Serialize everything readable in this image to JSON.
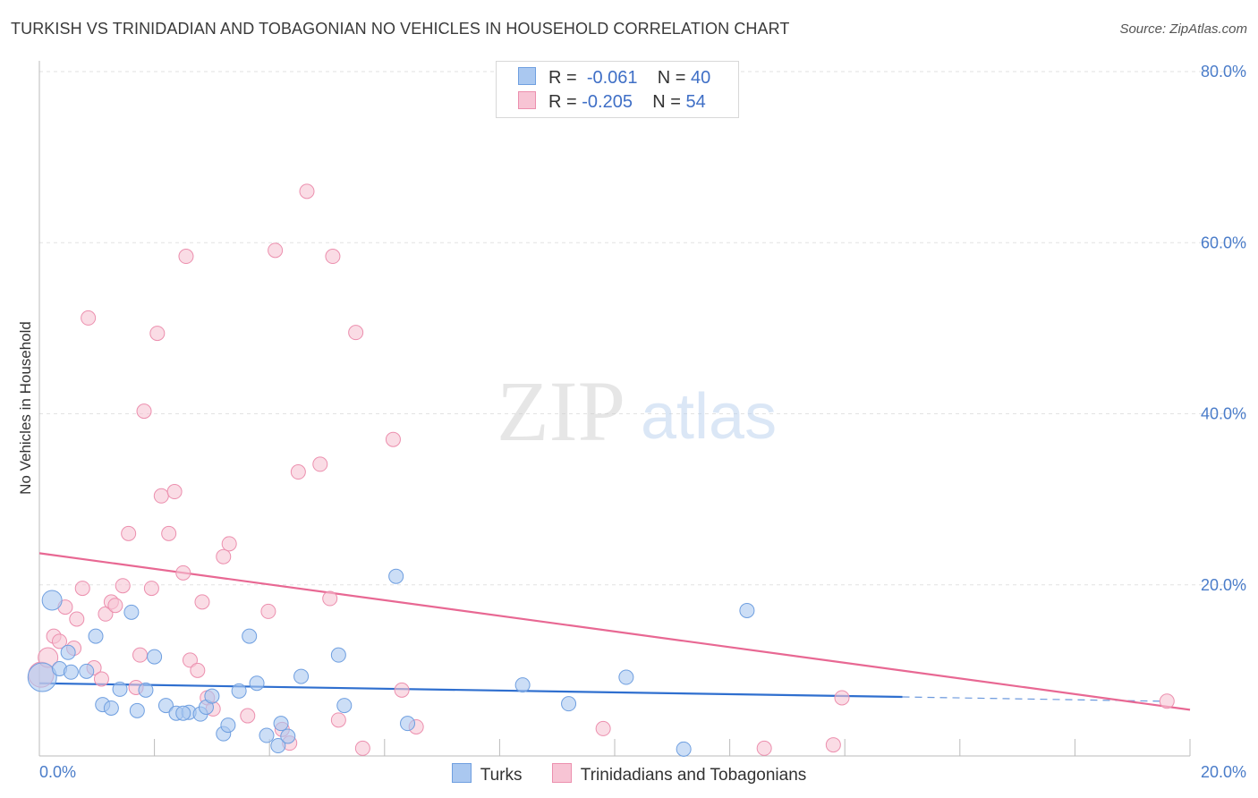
{
  "title": "TURKISH VS TRINIDADIAN AND TOBAGONIAN NO VEHICLES IN HOUSEHOLD CORRELATION CHART",
  "source": "Source: ZipAtlas.com",
  "watermark": {
    "zip": "ZIP",
    "atlas": "atlas"
  },
  "legend": {
    "rows": [
      {
        "r_label": "R =",
        "r_value": "-0.061",
        "n_label": "N =",
        "n_value": "40",
        "color": "#aac8f0",
        "border": "#6f9fe0"
      },
      {
        "r_label": "R =",
        "r_value": "-0.205",
        "n_label": "N =",
        "n_value": "54",
        "color": "#f7c4d4",
        "border": "#ec8fae"
      }
    ]
  },
  "bottom_legend": {
    "turks": "Turks",
    "trin": "Trinidadians and Tobagonians"
  },
  "colors": {
    "turks_fill": "#aac8f0",
    "turks_stroke": "#6f9fe0",
    "turks_line": "#2f6fcf",
    "trin_fill": "#f7c4d4",
    "trin_stroke": "#ec8fae",
    "trin_line": "#e86893",
    "grid": "#e2e2e2",
    "axis_text": "#4a7cc9"
  },
  "chart_data": {
    "type": "scatter",
    "title": "TURKISH VS TRINIDADIAN AND TOBAGONIAN NO VEHICLES IN HOUSEHOLD CORRELATION CHART",
    "xlabel": "",
    "ylabel": "No Vehicles in Household",
    "xlim": [
      0,
      20
    ],
    "ylim": [
      0,
      80
    ],
    "x_tick_labels": [
      "0.0%",
      "20.0%"
    ],
    "y_ticks": [
      20,
      40,
      60,
      80
    ],
    "y_tick_labels": [
      "20.0%",
      "40.0%",
      "60.0%",
      "80.0%"
    ],
    "series": [
      {
        "name": "Turks",
        "r": -0.061,
        "n": 40,
        "trend": {
          "x0": 0,
          "y0": 8.5,
          "x1": 15,
          "y1": 6.9,
          "dash_to": 19.5,
          "dash_y": 6.4
        },
        "points": [
          {
            "x": 0.05,
            "y": 9.2,
            "s": 16
          },
          {
            "x": 0.22,
            "y": 18.2,
            "s": 11
          },
          {
            "x": 0.35,
            "y": 10.2,
            "s": 8
          },
          {
            "x": 0.5,
            "y": 12.1,
            "s": 8
          },
          {
            "x": 0.55,
            "y": 9.8,
            "s": 8
          },
          {
            "x": 0.82,
            "y": 9.9,
            "s": 8
          },
          {
            "x": 0.98,
            "y": 14.0,
            "s": 8
          },
          {
            "x": 1.1,
            "y": 6.0,
            "s": 8
          },
          {
            "x": 1.25,
            "y": 5.6,
            "s": 8
          },
          {
            "x": 1.4,
            "y": 7.8,
            "s": 8
          },
          {
            "x": 1.6,
            "y": 16.8,
            "s": 8
          },
          {
            "x": 1.7,
            "y": 5.3,
            "s": 8
          },
          {
            "x": 1.85,
            "y": 7.7,
            "s": 8
          },
          {
            "x": 2.0,
            "y": 11.6,
            "s": 8
          },
          {
            "x": 2.2,
            "y": 5.9,
            "s": 8
          },
          {
            "x": 2.38,
            "y": 5.0,
            "s": 8
          },
          {
            "x": 2.6,
            "y": 5.1,
            "s": 8
          },
          {
            "x": 2.8,
            "y": 4.9,
            "s": 8
          },
          {
            "x": 2.9,
            "y": 5.7,
            "s": 8
          },
          {
            "x": 3.0,
            "y": 7.0,
            "s": 8
          },
          {
            "x": 3.2,
            "y": 2.6,
            "s": 8
          },
          {
            "x": 3.28,
            "y": 3.6,
            "s": 8
          },
          {
            "x": 3.47,
            "y": 7.6,
            "s": 8
          },
          {
            "x": 3.65,
            "y": 14.0,
            "s": 8
          },
          {
            "x": 3.78,
            "y": 8.5,
            "s": 8
          },
          {
            "x": 3.95,
            "y": 2.4,
            "s": 8
          },
          {
            "x": 4.15,
            "y": 1.2,
            "s": 8
          },
          {
            "x": 4.2,
            "y": 3.8,
            "s": 8
          },
          {
            "x": 4.32,
            "y": 2.3,
            "s": 8
          },
          {
            "x": 4.55,
            "y": 9.3,
            "s": 8
          },
          {
            "x": 5.2,
            "y": 11.8,
            "s": 8
          },
          {
            "x": 5.3,
            "y": 5.9,
            "s": 8
          },
          {
            "x": 6.2,
            "y": 21.0,
            "s": 8
          },
          {
            "x": 6.4,
            "y": 3.8,
            "s": 8
          },
          {
            "x": 8.4,
            "y": 8.3,
            "s": 8
          },
          {
            "x": 9.2,
            "y": 6.1,
            "s": 8
          },
          {
            "x": 10.2,
            "y": 9.2,
            "s": 8
          },
          {
            "x": 11.2,
            "y": 0.8,
            "s": 8
          },
          {
            "x": 12.3,
            "y": 17.0,
            "s": 8
          },
          {
            "x": 2.5,
            "y": 5.0,
            "s": 8
          }
        ]
      },
      {
        "name": "Trinidadians and Tobagonians",
        "r": -0.205,
        "n": 54,
        "trend": {
          "x0": 0,
          "y0": 23.7,
          "x1": 20,
          "y1": 5.4
        },
        "points": [
          {
            "x": 0.03,
            "y": 9.5,
            "s": 14
          },
          {
            "x": 0.15,
            "y": 11.5,
            "s": 11
          },
          {
            "x": 0.25,
            "y": 14.0,
            "s": 8
          },
          {
            "x": 0.35,
            "y": 13.4,
            "s": 8
          },
          {
            "x": 0.45,
            "y": 17.4,
            "s": 8
          },
          {
            "x": 0.6,
            "y": 12.6,
            "s": 8
          },
          {
            "x": 0.65,
            "y": 16.0,
            "s": 8
          },
          {
            "x": 0.75,
            "y": 19.6,
            "s": 8
          },
          {
            "x": 0.85,
            "y": 51.2,
            "s": 8
          },
          {
            "x": 0.95,
            "y": 10.3,
            "s": 8
          },
          {
            "x": 1.08,
            "y": 9.0,
            "s": 8
          },
          {
            "x": 1.15,
            "y": 16.6,
            "s": 8
          },
          {
            "x": 1.25,
            "y": 18.0,
            "s": 8
          },
          {
            "x": 1.32,
            "y": 17.6,
            "s": 8
          },
          {
            "x": 1.45,
            "y": 19.9,
            "s": 8
          },
          {
            "x": 1.55,
            "y": 26.0,
            "s": 8
          },
          {
            "x": 1.68,
            "y": 8.0,
            "s": 8
          },
          {
            "x": 1.75,
            "y": 11.8,
            "s": 8
          },
          {
            "x": 1.82,
            "y": 40.3,
            "s": 8
          },
          {
            "x": 1.95,
            "y": 19.6,
            "s": 8
          },
          {
            "x": 2.05,
            "y": 49.4,
            "s": 8
          },
          {
            "x": 2.12,
            "y": 30.4,
            "s": 8
          },
          {
            "x": 2.25,
            "y": 26.0,
            "s": 8
          },
          {
            "x": 2.35,
            "y": 30.9,
            "s": 8
          },
          {
            "x": 2.5,
            "y": 21.4,
            "s": 8
          },
          {
            "x": 2.55,
            "y": 58.4,
            "s": 8
          },
          {
            "x": 2.62,
            "y": 11.2,
            "s": 8
          },
          {
            "x": 2.75,
            "y": 10.0,
            "s": 8
          },
          {
            "x": 2.83,
            "y": 18.0,
            "s": 8
          },
          {
            "x": 2.92,
            "y": 6.8,
            "s": 8
          },
          {
            "x": 3.02,
            "y": 5.5,
            "s": 8
          },
          {
            "x": 3.2,
            "y": 23.3,
            "s": 8
          },
          {
            "x": 3.3,
            "y": 24.8,
            "s": 8
          },
          {
            "x": 3.62,
            "y": 4.7,
            "s": 8
          },
          {
            "x": 3.98,
            "y": 16.9,
            "s": 8
          },
          {
            "x": 4.1,
            "y": 59.1,
            "s": 8
          },
          {
            "x": 4.22,
            "y": 3.1,
            "s": 8
          },
          {
            "x": 4.35,
            "y": 1.5,
            "s": 8
          },
          {
            "x": 4.5,
            "y": 33.2,
            "s": 8
          },
          {
            "x": 4.65,
            "y": 66.0,
            "s": 8
          },
          {
            "x": 4.88,
            "y": 34.1,
            "s": 8
          },
          {
            "x": 5.05,
            "y": 18.4,
            "s": 8
          },
          {
            "x": 5.1,
            "y": 58.4,
            "s": 8
          },
          {
            "x": 5.2,
            "y": 4.2,
            "s": 8
          },
          {
            "x": 5.5,
            "y": 49.5,
            "s": 8
          },
          {
            "x": 5.62,
            "y": 0.9,
            "s": 8
          },
          {
            "x": 6.15,
            "y": 37.0,
            "s": 8
          },
          {
            "x": 6.3,
            "y": 7.7,
            "s": 8
          },
          {
            "x": 6.55,
            "y": 3.4,
            "s": 8
          },
          {
            "x": 9.8,
            "y": 3.2,
            "s": 8
          },
          {
            "x": 12.6,
            "y": 0.9,
            "s": 8
          },
          {
            "x": 13.8,
            "y": 1.3,
            "s": 8
          },
          {
            "x": 13.95,
            "y": 6.8,
            "s": 8
          },
          {
            "x": 19.6,
            "y": 6.4,
            "s": 8
          }
        ]
      }
    ]
  }
}
